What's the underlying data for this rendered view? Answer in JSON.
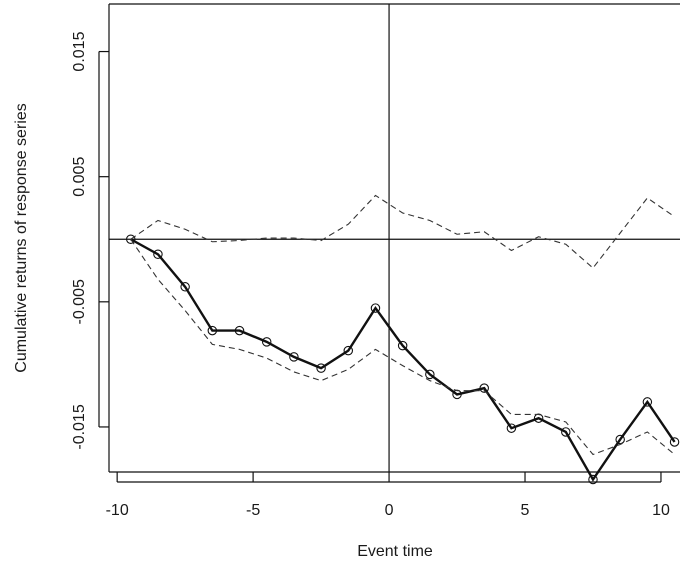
{
  "chart_data": {
    "type": "line",
    "title": "",
    "xlabel": "Event time",
    "ylabel": "Cumulative returns of response series",
    "xlim": [
      -10.3,
      10.7
    ],
    "ylim": [
      -0.0186,
      0.0188
    ],
    "x_ticks": [
      -10,
      -5,
      0,
      5,
      10
    ],
    "x_tick_labels": [
      "-10",
      "-5",
      "0",
      "5",
      "10"
    ],
    "y_ticks": [
      -0.015,
      -0.005,
      0.005,
      0.015
    ],
    "y_tick_labels": [
      "-0.015",
      "-0.005",
      "0.005",
      "0.015"
    ],
    "reference_lines": {
      "horizontal": 0,
      "vertical": 0
    },
    "grid": false,
    "legend": "none",
    "colors": {
      "series": "#111111",
      "band": "#333333",
      "axes": "#111111"
    },
    "x": [
      -9.5,
      -8.5,
      -7.5,
      -6.5,
      -5.5,
      -4.5,
      -3.5,
      -2.5,
      -1.5,
      -0.5,
      0.5,
      1.5,
      2.5,
      3.5,
      4.5,
      5.5,
      6.5,
      7.5,
      8.5,
      9.5,
      10.5
    ],
    "series": [
      {
        "style": "solid-with-circle-markers",
        "values": [
          0.0,
          -0.0012,
          -0.0038,
          -0.0073,
          -0.0073,
          -0.0082,
          -0.0094,
          -0.0103,
          -0.0089,
          -0.0055,
          -0.0085,
          -0.0108,
          -0.0124,
          -0.0119,
          -0.0151,
          -0.0143,
          -0.0154,
          -0.0192,
          -0.016,
          -0.013,
          -0.0162
        ]
      },
      {
        "style": "dashed",
        "values": [
          0.0,
          0.0015,
          0.0008,
          -0.0002,
          -0.0001,
          0.0001,
          0.0001,
          -0.0001,
          0.0012,
          0.0035,
          0.0021,
          0.0015,
          0.0004,
          0.0006,
          -0.0009,
          0.0002,
          -0.0004,
          -0.0023,
          0.0005,
          0.0033,
          0.0018
        ]
      },
      {
        "style": "dashed",
        "values": [
          0.0,
          -0.0032,
          -0.0057,
          -0.0084,
          -0.0088,
          -0.0095,
          -0.0106,
          -0.0113,
          -0.0104,
          -0.0088,
          -0.0101,
          -0.0113,
          -0.0121,
          -0.0121,
          -0.014,
          -0.014,
          -0.0146,
          -0.0172,
          -0.0164,
          -0.0154,
          -0.0172
        ]
      }
    ]
  }
}
